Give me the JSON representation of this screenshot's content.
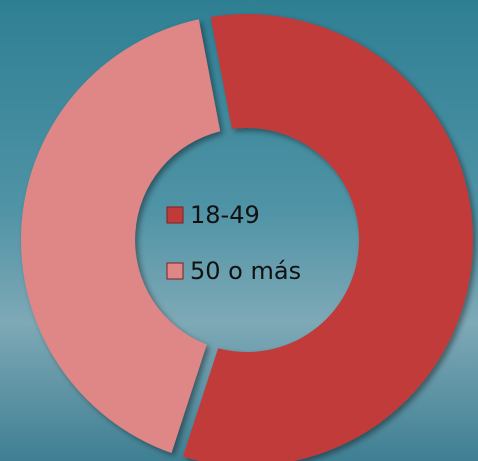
{
  "chart_data": {
    "type": "donut",
    "categories": [
      "18-49",
      "50 o más"
    ],
    "values": [
      58,
      42
    ],
    "colors": [
      "#c13a3a",
      "#df8686"
    ]
  }
}
